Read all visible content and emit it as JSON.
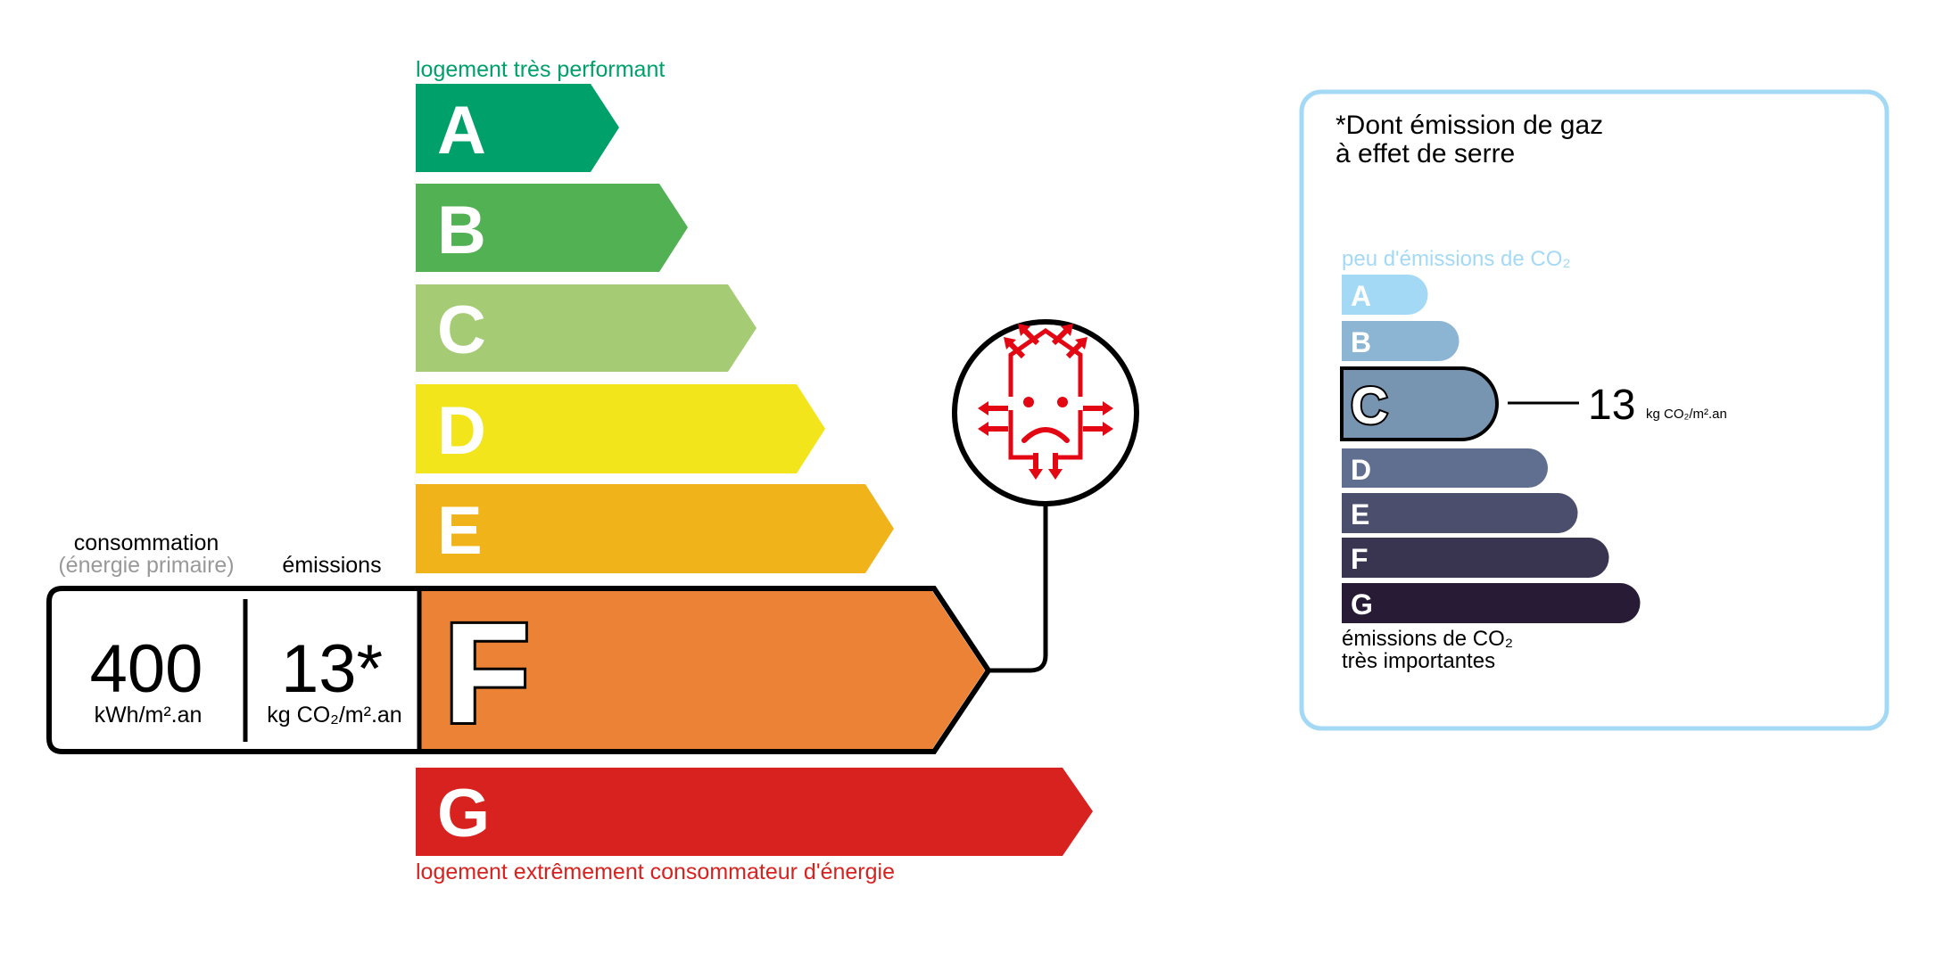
{
  "energy": {
    "top_label": "logement très performant",
    "bottom_label": "logement extrêmement consommateur d'énergie",
    "classes": [
      {
        "letter": "A",
        "color": "#00a06b"
      },
      {
        "letter": "B",
        "color": "#52b153"
      },
      {
        "letter": "C",
        "color": "#a5cc74"
      },
      {
        "letter": "D",
        "color": "#f2e51c"
      },
      {
        "letter": "E",
        "color": "#f0b41a"
      },
      {
        "letter": "F",
        "color": "#eb8235"
      },
      {
        "letter": "G",
        "color": "#d7221f"
      }
    ],
    "current_class": "F",
    "consumption_label": "consommation",
    "consumption_sublabel": "(énergie primaire)",
    "emissions_label": "émissions",
    "consumption_value": "400",
    "consumption_unit": "kWh/m².an",
    "emissions_value": "13*",
    "emissions_unit": "kg CO₂/m².an",
    "icon": "leaky-house-sad-face-icon",
    "icon_color": "#e30613"
  },
  "ges": {
    "title_line1": "*Dont émission de gaz",
    "title_line2": "à effet de serre",
    "top_label": "peu d'émissions de CO₂",
    "bottom_label_line1": "émissions de CO₂",
    "bottom_label_line2": "très importantes",
    "border_color": "#a4d9f6",
    "classes": [
      {
        "letter": "A",
        "color": "#a4d9f6"
      },
      {
        "letter": "B",
        "color": "#8cb4d3"
      },
      {
        "letter": "C",
        "color": "#7794b1"
      },
      {
        "letter": "D",
        "color": "#606e8f"
      },
      {
        "letter": "E",
        "color": "#4c4e6e"
      },
      {
        "letter": "F",
        "color": "#393551"
      },
      {
        "letter": "G",
        "color": "#281b35"
      }
    ],
    "current_class": "C",
    "value": "13",
    "unit": "kg CO₂/m².an"
  }
}
